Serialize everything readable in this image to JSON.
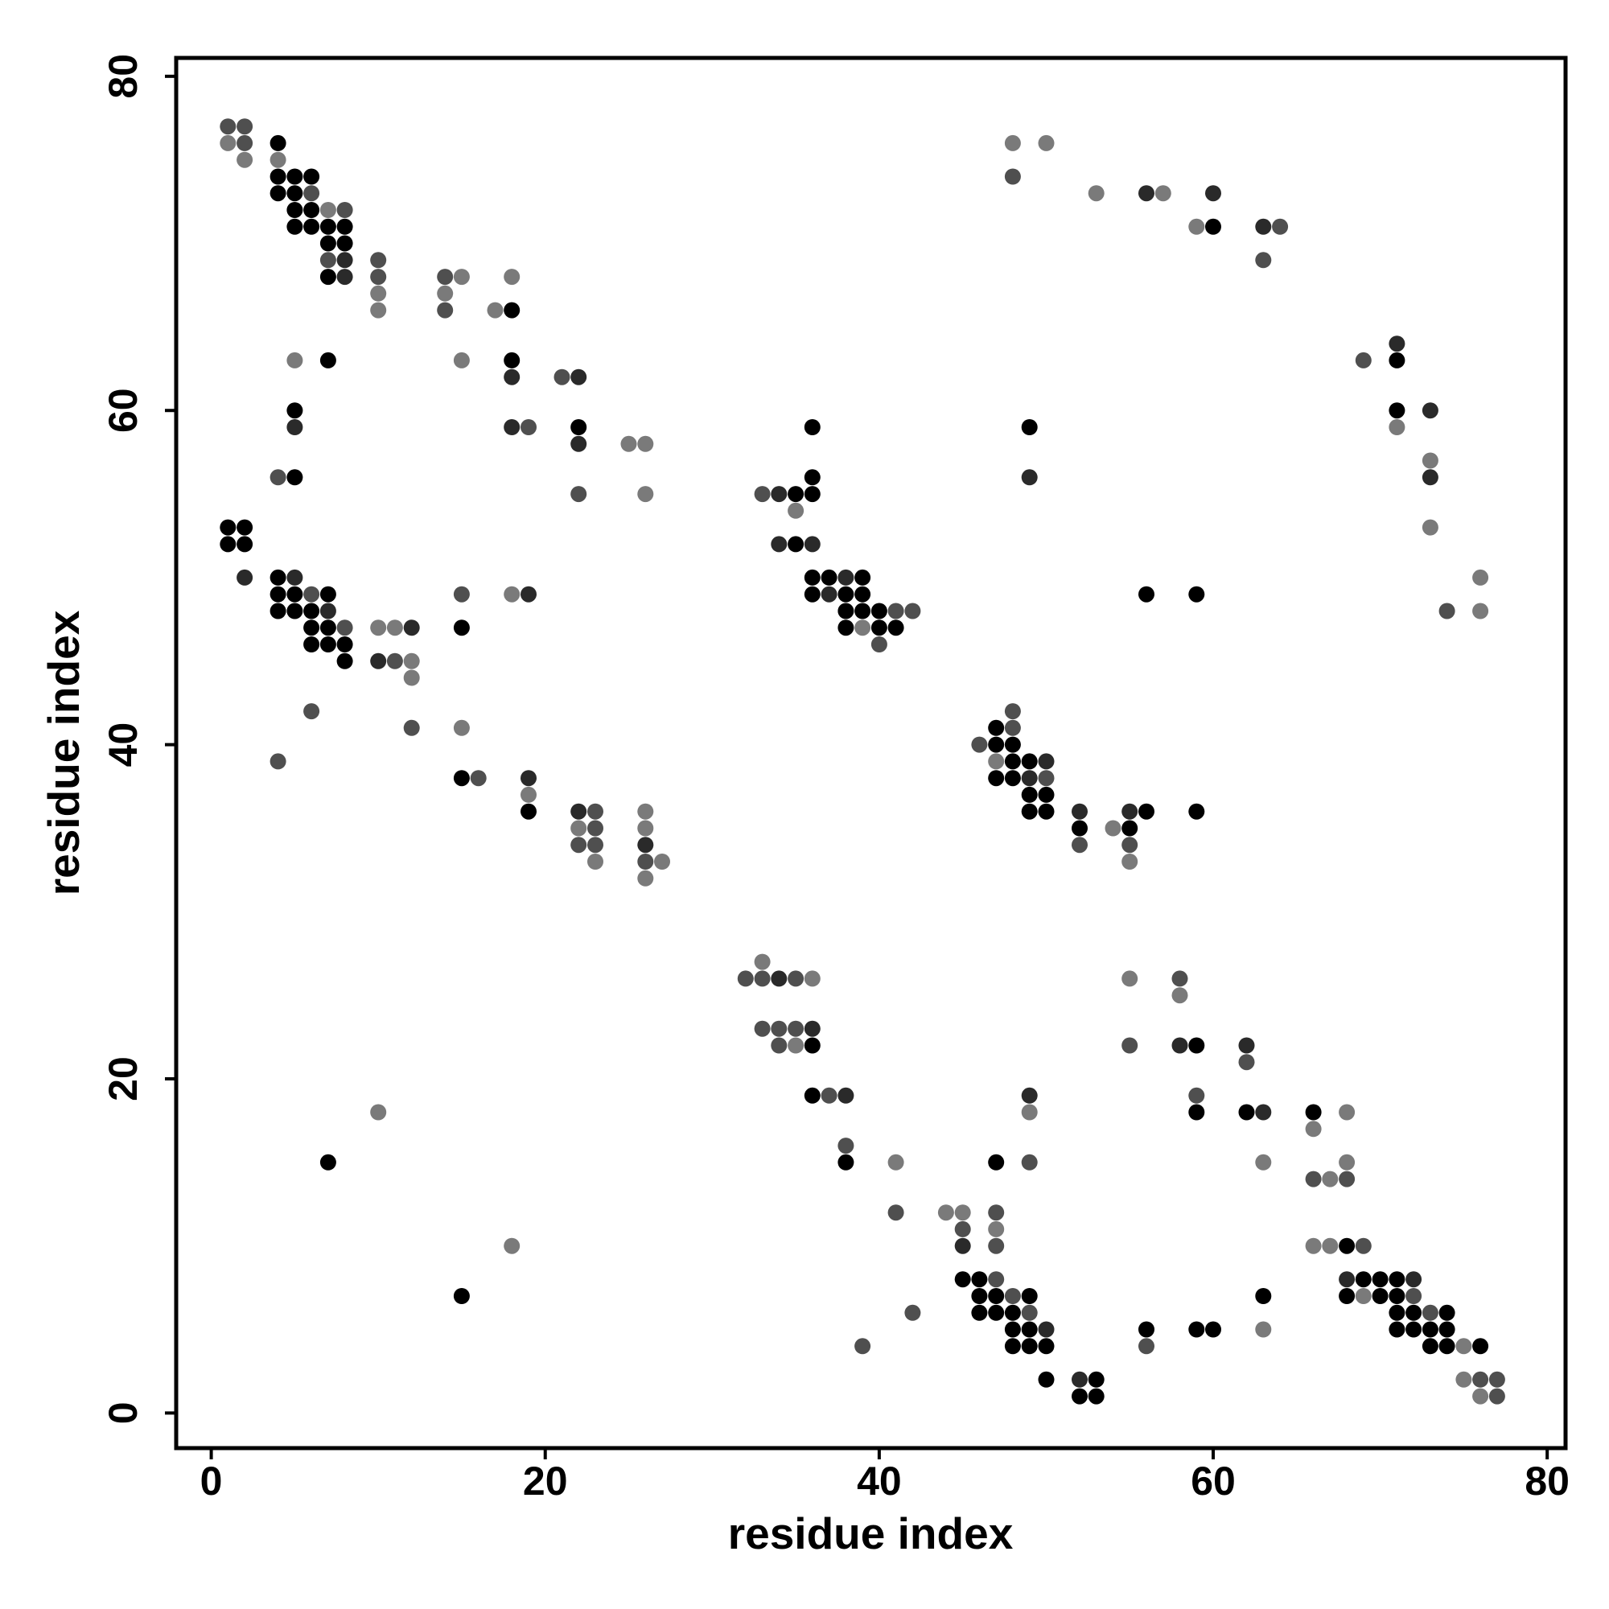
{
  "chart_data": {
    "type": "scatter",
    "title": "",
    "xlabel": "residue index",
    "ylabel": "residue index",
    "xlim": [
      -2.1,
      81.1
    ],
    "ylim": [
      -2.1,
      81.1
    ],
    "xticks": [
      0,
      20,
      40,
      60,
      80
    ],
    "yticks": [
      0,
      20,
      40,
      60,
      80
    ],
    "grid": false,
    "legend": "none",
    "point_shades": {
      "1": "#000000",
      "2": "#2a2a2a",
      "3": "#4f4f4f",
      "4": "#7a7a7a"
    },
    "points": [
      [
        1,
        77,
        3
      ],
      [
        2,
        77,
        3
      ],
      [
        1,
        76,
        4
      ],
      [
        2,
        76,
        3
      ],
      [
        2,
        75,
        4
      ],
      [
        4,
        76,
        1
      ],
      [
        4,
        75,
        4
      ],
      [
        4,
        74,
        1
      ],
      [
        5,
        74,
        1
      ],
      [
        6,
        74,
        1
      ],
      [
        4,
        73,
        1
      ],
      [
        5,
        73,
        1
      ],
      [
        6,
        73,
        3
      ],
      [
        5,
        72,
        1
      ],
      [
        6,
        72,
        1
      ],
      [
        7,
        72,
        4
      ],
      [
        8,
        72,
        3
      ],
      [
        5,
        71,
        1
      ],
      [
        6,
        71,
        1
      ],
      [
        7,
        71,
        1
      ],
      [
        8,
        71,
        1
      ],
      [
        7,
        70,
        1
      ],
      [
        8,
        70,
        1
      ],
      [
        7,
        69,
        3
      ],
      [
        8,
        69,
        2
      ],
      [
        7,
        68,
        1
      ],
      [
        8,
        68,
        2
      ],
      [
        10,
        69,
        3
      ],
      [
        10,
        68,
        3
      ],
      [
        10,
        67,
        4
      ],
      [
        10,
        66,
        4
      ],
      [
        14,
        68,
        3
      ],
      [
        15,
        68,
        4
      ],
      [
        14,
        67,
        4
      ],
      [
        14,
        66,
        3
      ],
      [
        17,
        66,
        4
      ],
      [
        18,
        66,
        1
      ],
      [
        18,
        68,
        4
      ],
      [
        18,
        63,
        1
      ],
      [
        18,
        62,
        2
      ],
      [
        5,
        63,
        4
      ],
      [
        7,
        63,
        1
      ],
      [
        15,
        63,
        4
      ],
      [
        21,
        62,
        3
      ],
      [
        22,
        62,
        2
      ],
      [
        18,
        59,
        2
      ],
      [
        19,
        59,
        3
      ],
      [
        22,
        59,
        1
      ],
      [
        22,
        58,
        2
      ],
      [
        25,
        58,
        4
      ],
      [
        26,
        58,
        4
      ],
      [
        22,
        55,
        3
      ],
      [
        26,
        55,
        4
      ],
      [
        5,
        60,
        1
      ],
      [
        5,
        59,
        2
      ],
      [
        4,
        56,
        3
      ],
      [
        5,
        56,
        1
      ],
      [
        1,
        53,
        1
      ],
      [
        2,
        53,
        1
      ],
      [
        1,
        52,
        1
      ],
      [
        2,
        52,
        1
      ],
      [
        2,
        50,
        2
      ],
      [
        4,
        50,
        1
      ],
      [
        5,
        50,
        2
      ],
      [
        4,
        49,
        1
      ],
      [
        5,
        49,
        1
      ],
      [
        6,
        49,
        3
      ],
      [
        7,
        49,
        1
      ],
      [
        4,
        48,
        1
      ],
      [
        5,
        48,
        1
      ],
      [
        6,
        48,
        1
      ],
      [
        7,
        48,
        2
      ],
      [
        6,
        47,
        1
      ],
      [
        7,
        47,
        1
      ],
      [
        8,
        47,
        3
      ],
      [
        6,
        46,
        1
      ],
      [
        7,
        46,
        1
      ],
      [
        8,
        46,
        1
      ],
      [
        8,
        45,
        1
      ],
      [
        10,
        47,
        4
      ],
      [
        11,
        47,
        4
      ],
      [
        12,
        47,
        2
      ],
      [
        10,
        45,
        2
      ],
      [
        11,
        45,
        3
      ],
      [
        12,
        45,
        4
      ],
      [
        12,
        44,
        4
      ],
      [
        15,
        49,
        3
      ],
      [
        15,
        47,
        1
      ],
      [
        18,
        49,
        4
      ],
      [
        19,
        49,
        2
      ],
      [
        6,
        42,
        3
      ],
      [
        12,
        41,
        3
      ],
      [
        15,
        41,
        4
      ],
      [
        4,
        39,
        3
      ],
      [
        15,
        38,
        1
      ],
      [
        16,
        38,
        3
      ],
      [
        19,
        38,
        2
      ],
      [
        19,
        37,
        4
      ],
      [
        19,
        36,
        1
      ],
      [
        22,
        36,
        2
      ],
      [
        23,
        36,
        3
      ],
      [
        22,
        35,
        4
      ],
      [
        23,
        35,
        3
      ],
      [
        22,
        34,
        3
      ],
      [
        23,
        34,
        3
      ],
      [
        23,
        33,
        4
      ],
      [
        26,
        36,
        4
      ],
      [
        26,
        35,
        4
      ],
      [
        26,
        34,
        2
      ],
      [
        26,
        33,
        3
      ],
      [
        27,
        33,
        4
      ],
      [
        26,
        32,
        4
      ],
      [
        33,
        55,
        3
      ],
      [
        34,
        55,
        2
      ],
      [
        35,
        55,
        1
      ],
      [
        36,
        55,
        1
      ],
      [
        35,
        54,
        4
      ],
      [
        36,
        56,
        1
      ],
      [
        36,
        59,
        1
      ],
      [
        34,
        52,
        2
      ],
      [
        35,
        52,
        1
      ],
      [
        36,
        52,
        2
      ],
      [
        36,
        50,
        1
      ],
      [
        37,
        50,
        1
      ],
      [
        38,
        50,
        2
      ],
      [
        39,
        50,
        1
      ],
      [
        36,
        49,
        1
      ],
      [
        37,
        49,
        2
      ],
      [
        38,
        49,
        1
      ],
      [
        39,
        49,
        1
      ],
      [
        38,
        48,
        1
      ],
      [
        39,
        48,
        1
      ],
      [
        40,
        48,
        1
      ],
      [
        41,
        48,
        3
      ],
      [
        42,
        48,
        3
      ],
      [
        38,
        47,
        1
      ],
      [
        39,
        47,
        4
      ],
      [
        40,
        47,
        1
      ],
      [
        41,
        47,
        1
      ],
      [
        40,
        46,
        3
      ],
      [
        48,
        76,
        4
      ],
      [
        50,
        76,
        4
      ],
      [
        48,
        74,
        3
      ],
      [
        53,
        73,
        4
      ],
      [
        56,
        73,
        2
      ],
      [
        57,
        73,
        4
      ],
      [
        59,
        71,
        4
      ],
      [
        60,
        71,
        1
      ],
      [
        60,
        73,
        2
      ],
      [
        63,
        71,
        2
      ],
      [
        64,
        71,
        3
      ],
      [
        63,
        69,
        3
      ],
      [
        49,
        59,
        1
      ],
      [
        49,
        56,
        2
      ],
      [
        56,
        49,
        1
      ],
      [
        59,
        49,
        1
      ],
      [
        69,
        63,
        3
      ],
      [
        71,
        64,
        2
      ],
      [
        71,
        63,
        1
      ],
      [
        71,
        60,
        1
      ],
      [
        71,
        59,
        4
      ],
      [
        73,
        60,
        2
      ],
      [
        73,
        57,
        4
      ],
      [
        73,
        56,
        2
      ],
      [
        73,
        53,
        4
      ],
      [
        76,
        50,
        4
      ],
      [
        74,
        48,
        3
      ],
      [
        76,
        48,
        4
      ],
      [
        48,
        42,
        3
      ],
      [
        47,
        41,
        1
      ],
      [
        48,
        41,
        3
      ],
      [
        46,
        40,
        3
      ],
      [
        47,
        40,
        1
      ],
      [
        48,
        40,
        1
      ],
      [
        47,
        39,
        4
      ],
      [
        48,
        39,
        1
      ],
      [
        49,
        39,
        1
      ],
      [
        50,
        39,
        2
      ],
      [
        47,
        38,
        1
      ],
      [
        48,
        38,
        1
      ],
      [
        49,
        38,
        2
      ],
      [
        50,
        38,
        3
      ],
      [
        49,
        37,
        1
      ],
      [
        50,
        37,
        1
      ],
      [
        49,
        36,
        1
      ],
      [
        50,
        36,
        1
      ],
      [
        52,
        36,
        2
      ],
      [
        55,
        36,
        2
      ],
      [
        56,
        36,
        1
      ],
      [
        59,
        36,
        1
      ],
      [
        52,
        35,
        1
      ],
      [
        54,
        35,
        4
      ],
      [
        55,
        35,
        1
      ],
      [
        52,
        34,
        3
      ],
      [
        55,
        34,
        3
      ],
      [
        55,
        33,
        4
      ],
      [
        33,
        27,
        4
      ],
      [
        32,
        26,
        3
      ],
      [
        33,
        26,
        3
      ],
      [
        34,
        26,
        2
      ],
      [
        35,
        26,
        3
      ],
      [
        36,
        26,
        4
      ],
      [
        33,
        23,
        3
      ],
      [
        34,
        23,
        3
      ],
      [
        35,
        23,
        3
      ],
      [
        36,
        23,
        2
      ],
      [
        34,
        22,
        3
      ],
      [
        35,
        22,
        4
      ],
      [
        36,
        22,
        1
      ],
      [
        55,
        26,
        4
      ],
      [
        58,
        26,
        3
      ],
      [
        58,
        25,
        4
      ],
      [
        55,
        22,
        3
      ],
      [
        58,
        22,
        2
      ],
      [
        59,
        22,
        1
      ],
      [
        62,
        22,
        2
      ],
      [
        62,
        21,
        3
      ],
      [
        36,
        19,
        1
      ],
      [
        37,
        19,
        3
      ],
      [
        38,
        19,
        2
      ],
      [
        49,
        19,
        2
      ],
      [
        49,
        18,
        4
      ],
      [
        59,
        19,
        3
      ],
      [
        59,
        18,
        1
      ],
      [
        62,
        18,
        1
      ],
      [
        63,
        18,
        2
      ],
      [
        66,
        18,
        1
      ],
      [
        68,
        18,
        4
      ],
      [
        66,
        17,
        4
      ],
      [
        10,
        18,
        4
      ],
      [
        7,
        15,
        1
      ],
      [
        18,
        10,
        4
      ],
      [
        15,
        7,
        1
      ],
      [
        38,
        16,
        3
      ],
      [
        38,
        15,
        1
      ],
      [
        41,
        15,
        4
      ],
      [
        47,
        15,
        1
      ],
      [
        49,
        15,
        3
      ],
      [
        63,
        15,
        4
      ],
      [
        68,
        15,
        4
      ],
      [
        66,
        14,
        3
      ],
      [
        67,
        14,
        4
      ],
      [
        68,
        14,
        3
      ],
      [
        41,
        12,
        3
      ],
      [
        44,
        12,
        4
      ],
      [
        45,
        12,
        4
      ],
      [
        47,
        12,
        3
      ],
      [
        45,
        11,
        3
      ],
      [
        47,
        11,
        4
      ],
      [
        45,
        10,
        2
      ],
      [
        47,
        10,
        3
      ],
      [
        66,
        10,
        4
      ],
      [
        67,
        10,
        4
      ],
      [
        68,
        10,
        1
      ],
      [
        69,
        10,
        3
      ],
      [
        45,
        8,
        1
      ],
      [
        46,
        8,
        1
      ],
      [
        47,
        8,
        3
      ],
      [
        68,
        8,
        2
      ],
      [
        69,
        8,
        1
      ],
      [
        70,
        8,
        1
      ],
      [
        71,
        8,
        1
      ],
      [
        72,
        8,
        2
      ],
      [
        46,
        7,
        1
      ],
      [
        47,
        7,
        1
      ],
      [
        48,
        7,
        3
      ],
      [
        49,
        7,
        1
      ],
      [
        63,
        7,
        1
      ],
      [
        68,
        7,
        1
      ],
      [
        69,
        7,
        4
      ],
      [
        70,
        7,
        1
      ],
      [
        71,
        7,
        1
      ],
      [
        72,
        7,
        3
      ],
      [
        42,
        6,
        3
      ],
      [
        46,
        6,
        1
      ],
      [
        47,
        6,
        1
      ],
      [
        48,
        6,
        1
      ],
      [
        49,
        6,
        3
      ],
      [
        71,
        6,
        1
      ],
      [
        72,
        6,
        1
      ],
      [
        73,
        6,
        3
      ],
      [
        74,
        6,
        1
      ],
      [
        48,
        5,
        1
      ],
      [
        49,
        5,
        1
      ],
      [
        50,
        5,
        2
      ],
      [
        56,
        5,
        1
      ],
      [
        59,
        5,
        1
      ],
      [
        60,
        5,
        1
      ],
      [
        63,
        5,
        4
      ],
      [
        71,
        5,
        1
      ],
      [
        72,
        5,
        1
      ],
      [
        73,
        5,
        1
      ],
      [
        74,
        5,
        1
      ],
      [
        39,
        4,
        3
      ],
      [
        48,
        4,
        1
      ],
      [
        49,
        4,
        1
      ],
      [
        50,
        4,
        1
      ],
      [
        56,
        4,
        3
      ],
      [
        73,
        4,
        1
      ],
      [
        74,
        4,
        1
      ],
      [
        75,
        4,
        4
      ],
      [
        76,
        4,
        1
      ],
      [
        50,
        2,
        1
      ],
      [
        52,
        2,
        2
      ],
      [
        53,
        2,
        1
      ],
      [
        75,
        2,
        4
      ],
      [
        76,
        2,
        3
      ],
      [
        77,
        2,
        3
      ],
      [
        52,
        1,
        1
      ],
      [
        53,
        1,
        1
      ],
      [
        76,
        1,
        4
      ],
      [
        77,
        1,
        3
      ]
    ]
  }
}
